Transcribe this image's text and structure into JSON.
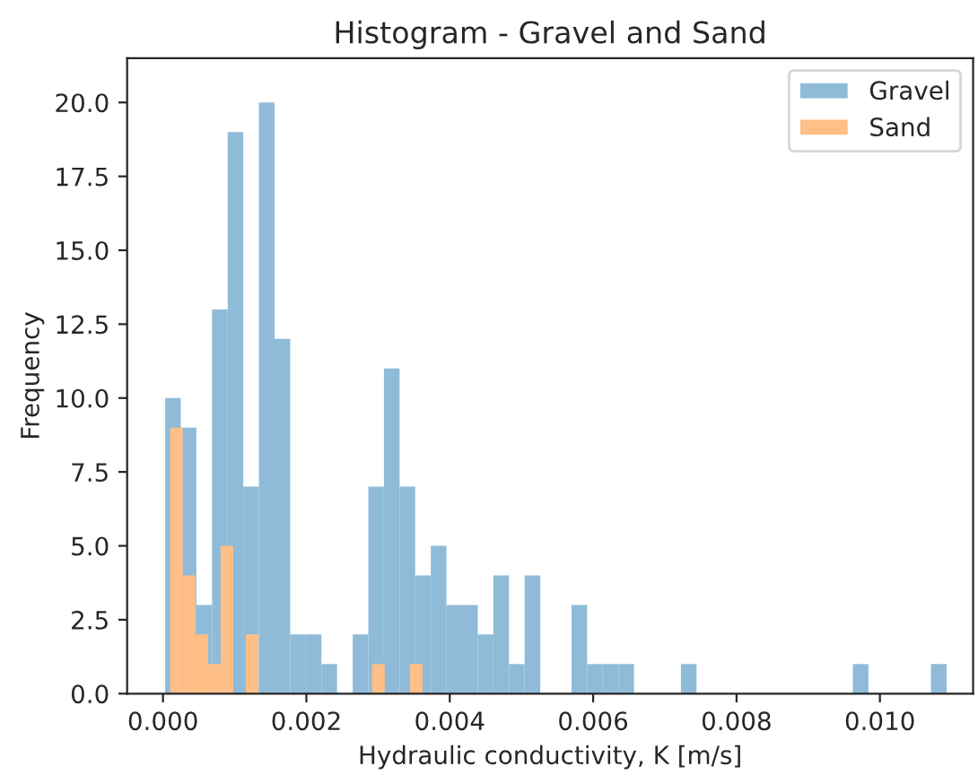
{
  "chart_data": {
    "type": "histogram",
    "title": "Histogram - Gravel and Sand",
    "xlabel": "Hydraulic conductivity, K [m/s]",
    "ylabel": "Frequency",
    "series": [
      {
        "name": "Gravel",
        "color": "#8fbbd9",
        "values": [
          10,
          9,
          3,
          13,
          19,
          7,
          20,
          12,
          2,
          2,
          1,
          0,
          2,
          7,
          11,
          7,
          4,
          5,
          3,
          3,
          2,
          4,
          1,
          4,
          0,
          0,
          3,
          1,
          1,
          1,
          0,
          0,
          0,
          1,
          0,
          0,
          0,
          0,
          0,
          0,
          0,
          0,
          0,
          0,
          1,
          0,
          0,
          0,
          0,
          1
        ]
      },
      {
        "name": "Sand",
        "color": "#ffbf86",
        "bins": [
          0.0001,
          0.000276,
          0.000452,
          0.000628,
          0.000804,
          0.00098,
          0.001156,
          0.001332,
          0.001508,
          0.001684,
          0.00186,
          0.002036,
          0.002212,
          0.002388,
          0.002564,
          0.00274,
          0.002916,
          0.003092,
          0.003268,
          0.003444,
          0.00362
        ],
        "values": [
          9,
          4,
          2,
          1,
          5,
          0,
          2,
          0,
          0,
          0,
          0,
          0,
          0,
          0,
          0,
          0,
          1,
          0,
          0,
          1
        ]
      }
    ],
    "bins": [
      3e-05,
      0.000248,
      0.000466,
      0.000684,
      0.000902,
      0.00112,
      0.001338,
      0.001556,
      0.001774,
      0.001992,
      0.00221,
      0.002428,
      0.002646,
      0.002864,
      0.003082,
      0.0033,
      0.003518,
      0.003736,
      0.003954,
      0.004172,
      0.00439,
      0.004608,
      0.004826,
      0.005044,
      0.005262,
      0.00548,
      0.005698,
      0.005916,
      0.006134,
      0.006352,
      0.00657,
      0.006788,
      0.007006,
      0.007224,
      0.007442,
      0.00766,
      0.007878,
      0.008096,
      0.008314,
      0.008532,
      0.00875,
      0.008968,
      0.009186,
      0.009404,
      0.009622,
      0.00984,
      0.010058,
      0.010276,
      0.010494,
      0.010712,
      0.01093
    ],
    "xlim": [
      -0.0005,
      0.0113
    ],
    "ylim": [
      0,
      21.5
    ],
    "xticks": [
      {
        "value": 0,
        "label": "0.000"
      },
      {
        "value": 0.002,
        "label": "0.002"
      },
      {
        "value": 0.004,
        "label": "0.004"
      },
      {
        "value": 0.006,
        "label": "0.006"
      },
      {
        "value": 0.008,
        "label": "0.008"
      },
      {
        "value": 0.01,
        "label": "0.010"
      }
    ],
    "yticks": [
      {
        "value": 0,
        "label": "0.0"
      },
      2.5,
      {
        "value": 5,
        "label": "5.0"
      },
      7.5,
      {
        "value": 10,
        "label": "10.0"
      },
      12.5,
      {
        "value": 15,
        "label": "15.0"
      },
      17.5,
      {
        "value": 20,
        "label": "20.0"
      }
    ],
    "legend": "top right",
    "grid": false
  }
}
